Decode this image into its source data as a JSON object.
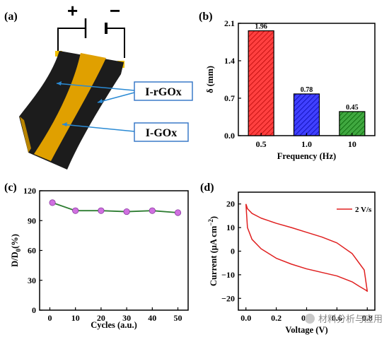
{
  "panels": {
    "a": {
      "label": "(a)",
      "plus_sign": "+",
      "minus_sign": "−",
      "callouts": [
        "I-rGOx",
        "I-GOx"
      ],
      "colors": {
        "black_layer": "#1a1a1a",
        "gold_layer": "#e0a000",
        "callout_line": "#2a8ad4"
      }
    },
    "b": {
      "label": "(b)"
    },
    "c": {
      "label": "(c)"
    },
    "d": {
      "label": "(d)"
    }
  },
  "chart_data": [
    {
      "panel": "b",
      "type": "bar",
      "categories": [
        "0.5",
        "1.0",
        "10"
      ],
      "values": [
        1.96,
        0.78,
        0.45
      ],
      "value_labels": [
        "1.96",
        "0.78",
        "0.45"
      ],
      "colors": [
        "#ff2a2a",
        "#2a2aff",
        "#2a9a2a"
      ],
      "pattern": "diagonal hatch",
      "xlabel": "Frequency (Hz)",
      "ylabel": "δ (mm)",
      "ylim": [
        0,
        2.1
      ],
      "yticks": [
        "0.0",
        "0.7",
        "1.4",
        "2.1"
      ]
    },
    {
      "panel": "c",
      "type": "line",
      "x": [
        1,
        10,
        20,
        30,
        40,
        50
      ],
      "y": [
        108,
        100,
        100,
        99,
        100,
        98
      ],
      "marker_color": "#d070e0",
      "line_color": "#2e7d32",
      "xlabel": "Cycles (a.u.)",
      "ylabel_main": "D/D",
      "ylabel_sub": "0",
      "ylabel_tail": "(%)",
      "xlim": [
        -4,
        54
      ],
      "ylim": [
        0,
        120
      ],
      "xticks": [
        "0",
        "10",
        "20",
        "30",
        "40",
        "50"
      ],
      "yticks": [
        "0",
        "30",
        "60",
        "90",
        "120"
      ]
    },
    {
      "panel": "d",
      "type": "line",
      "series": [
        {
          "name": "2 V/s",
          "color": "#e02020",
          "x": [
            0.0,
            0.01,
            0.04,
            0.1,
            0.2,
            0.3,
            0.4,
            0.5,
            0.6,
            0.7,
            0.78,
            0.8,
            0.79,
            0.75,
            0.7,
            0.6,
            0.5,
            0.4,
            0.3,
            0.2,
            0.1,
            0.04,
            0.01,
            0.0
          ],
          "y": [
            20,
            18,
            16,
            14,
            11.8,
            10,
            8,
            6,
            3.5,
            -1,
            -8,
            -17,
            -16.5,
            -15,
            -13,
            -10.5,
            -9,
            -7.5,
            -5.5,
            -3,
            1,
            5,
            10,
            20
          ]
        }
      ],
      "xlabel": "Voltage (V)",
      "ylabel_main": "Current (μA cm",
      "ylabel_sup": "−2",
      "ylabel_tail": ")",
      "xlim": [
        -0.05,
        0.85
      ],
      "ylim": [
        -25,
        25
      ],
      "xticks": [
        "0.0",
        "0.2",
        "0.4",
        "0.6",
        "0.8"
      ],
      "yticks": [
        "−20",
        "−10",
        "0",
        "10",
        "20"
      ]
    }
  ],
  "watermark": "材料分析与应用"
}
